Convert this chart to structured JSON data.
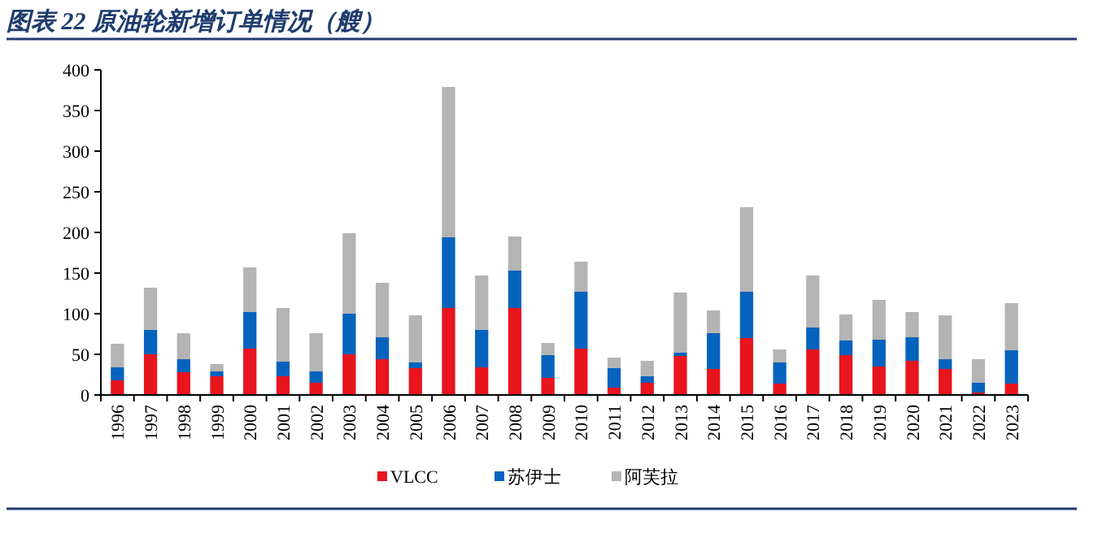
{
  "chart_data": {
    "type": "bar",
    "stacked": true,
    "title": "图表 22  原油轮新增订单情况（艘）",
    "categories": [
      "1996",
      "1997",
      "1998",
      "1999",
      "2000",
      "2001",
      "2002",
      "2003",
      "2004",
      "2005",
      "2006",
      "2007",
      "2008",
      "2009",
      "2010",
      "2011",
      "2012",
      "2013",
      "2014",
      "2015",
      "2016",
      "2017",
      "2018",
      "2019",
      "2020",
      "2021",
      "2022",
      "2023"
    ],
    "series": [
      {
        "name": "VLCC",
        "color": "#e8141e",
        "values": [
          18,
          50,
          28,
          23,
          57,
          23,
          15,
          50,
          44,
          33,
          107,
          34,
          107,
          21,
          57,
          9,
          15,
          48,
          32,
          70,
          14,
          56,
          49,
          35,
          42,
          32,
          3,
          14
        ]
      },
      {
        "name": "苏伊士",
        "color": "#0563be",
        "values": [
          16,
          30,
          16,
          6,
          45,
          18,
          14,
          50,
          27,
          7,
          87,
          46,
          46,
          28,
          70,
          24,
          8,
          4,
          44,
          57,
          26,
          27,
          18,
          33,
          29,
          12,
          12,
          41
        ]
      },
      {
        "name": "阿芙拉",
        "color": "#b4b4b4",
        "values": [
          29,
          52,
          32,
          9,
          55,
          66,
          47,
          99,
          67,
          58,
          185,
          67,
          42,
          15,
          37,
          13,
          19,
          74,
          28,
          104,
          16,
          64,
          32,
          49,
          31,
          54,
          29,
          58
        ]
      }
    ],
    "ylim": [
      0,
      400
    ],
    "yticks": [
      0,
      50,
      100,
      150,
      200,
      250,
      300,
      350,
      400
    ],
    "grid": false,
    "legend": "bottom"
  }
}
